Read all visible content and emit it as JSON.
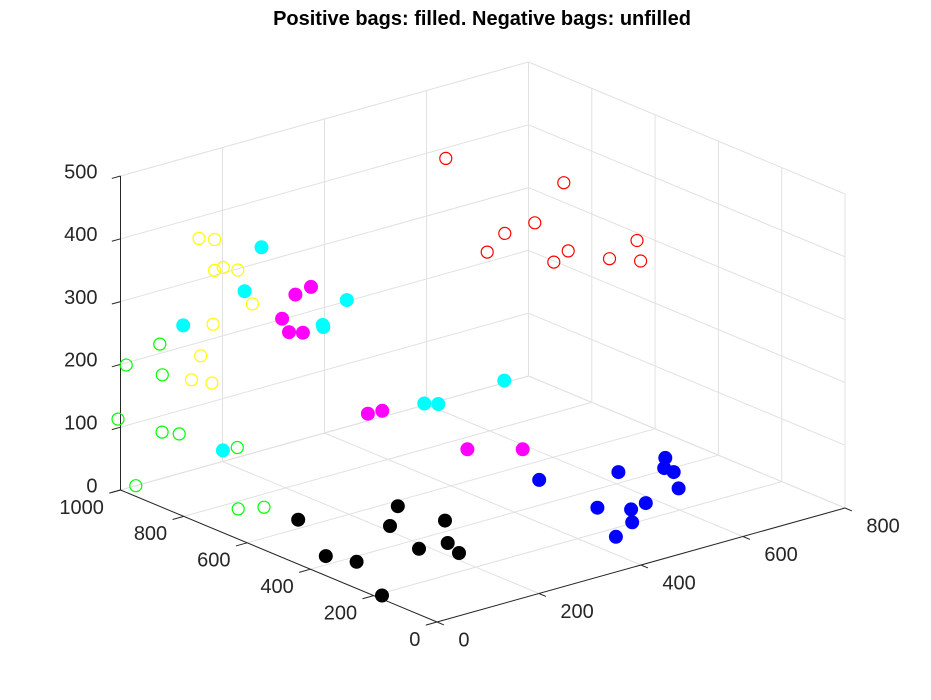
{
  "colors": {
    "background": "#ffffff",
    "grid": "#e1e1e1",
    "axis": "#262626",
    "text": "#262626"
  },
  "chart_data": {
    "type": "scatter",
    "title": "Positive bags: filled. Negative bags: unfilled",
    "xlabel": "",
    "ylabel": "",
    "zlabel": "",
    "grid": true,
    "x_ticks": [
      "0",
      "200",
      "400",
      "600",
      "800"
    ],
    "y_ticks": [
      "0",
      "200",
      "400",
      "600",
      "800",
      "1000"
    ],
    "z_ticks": [
      "0",
      "100",
      "200",
      "300",
      "400",
      "500"
    ],
    "xlim": [
      0,
      800
    ],
    "ylim": [
      0,
      1000
    ],
    "zlim": [
      0,
      500
    ],
    "series": [
      {
        "color": "#000000",
        "filled": true,
        "points": [
          [
            125,
            640,
            0
          ],
          [
            55,
            440,
            0
          ],
          [
            75,
            375,
            0
          ],
          [
            215,
            495,
            0
          ],
          [
            235,
            345,
            0
          ],
          [
            280,
            575,
            0
          ],
          [
            295,
            450,
            0
          ],
          [
            185,
            355,
            0
          ],
          [
            220,
            285,
            0
          ],
          [
            10,
            190,
            0
          ]
        ]
      },
      {
        "color": "#0000ff",
        "filled": true,
        "points": [
          [
            520,
            515,
            0
          ],
          [
            510,
            315,
            0
          ],
          [
            635,
            450,
            0
          ],
          [
            660,
            300,
            0
          ],
          [
            700,
            380,
            0
          ],
          [
            700,
            410,
            0
          ],
          [
            730,
            455,
            0
          ],
          [
            450,
            160,
            0
          ],
          [
            510,
            205,
            0
          ],
          [
            545,
            265,
            0
          ],
          [
            580,
            275,
            0
          ]
        ]
      },
      {
        "color": "#ff00ff",
        "filled": true,
        "points": [
          [
            240,
            605,
            150
          ],
          [
            265,
            600,
            150
          ],
          [
            200,
            790,
            250
          ],
          [
            215,
            770,
            250
          ],
          [
            225,
            810,
            300
          ],
          [
            265,
            825,
            300
          ],
          [
            230,
            860,
            250
          ],
          [
            345,
            460,
            100
          ],
          [
            410,
            390,
            100
          ]
        ]
      },
      {
        "color": "#00ffff",
        "filled": true,
        "points": [
          [
            270,
            720,
            300
          ],
          [
            260,
            780,
            250
          ],
          [
            255,
            770,
            250
          ],
          [
            350,
            560,
            150
          ],
          [
            335,
            580,
            150
          ],
          [
            405,
            440,
            200
          ],
          [
            55,
            765,
            100
          ],
          [
            95,
            955,
            250
          ],
          [
            175,
            890,
            300
          ],
          [
            230,
            925,
            350
          ]
        ]
      },
      {
        "color": "#ff0000",
        "filled": false,
        "points": [
          [
            520,
            810,
            450
          ],
          [
            590,
            550,
            450
          ],
          [
            580,
            520,
            350
          ],
          [
            555,
            680,
            350
          ],
          [
            620,
            690,
            350
          ],
          [
            620,
            630,
            300
          ],
          [
            570,
            760,
            300
          ],
          [
            690,
            480,
            350
          ],
          [
            695,
            575,
            300
          ],
          [
            725,
            525,
            300
          ]
        ]
      },
      {
        "color": "#ffff00",
        "filled": false,
        "points": [
          [
            5,
            760,
            450
          ],
          [
            20,
            735,
            450
          ],
          [
            40,
            740,
            400
          ],
          [
            50,
            710,
            400
          ],
          [
            60,
            680,
            350
          ],
          [
            45,
            780,
            300
          ],
          [
            40,
            840,
            200
          ],
          [
            55,
            800,
            200
          ],
          [
            110,
            880,
            350
          ],
          [
            30,
            795,
            250
          ]
        ]
      },
      {
        "color": "#00ff00",
        "filled": false,
        "points": [
          [
            15,
            900,
            250
          ],
          [
            5,
            990,
            200
          ],
          [
            20,
            900,
            200
          ],
          [
            120,
            740,
            0
          ],
          [
            50,
            895,
            100
          ],
          [
            20,
            1040,
            100
          ],
          [
            35,
            925,
            100
          ],
          [
            80,
            760,
            100
          ],
          [
            30,
            1000,
            0
          ],
          [
            85,
            765,
            0
          ]
        ]
      }
    ]
  }
}
